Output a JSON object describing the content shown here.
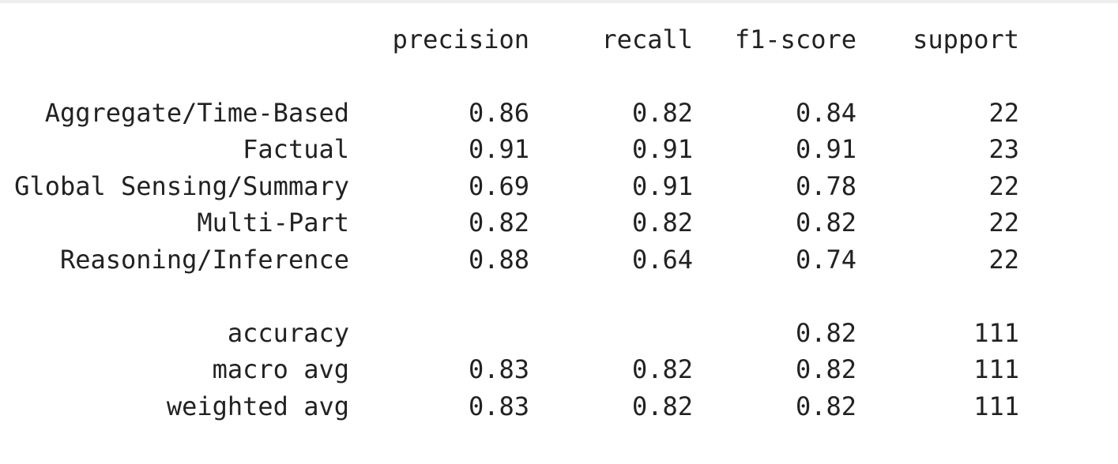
{
  "headers": {
    "precision": "precision",
    "recall": "recall",
    "f1": "f1-score",
    "support": "support"
  },
  "rows": [
    {
      "label": "Aggregate/Time-Based",
      "precision": "0.86",
      "recall": "0.82",
      "f1": "0.84",
      "support": "22"
    },
    {
      "label": "Factual",
      "precision": "0.91",
      "recall": "0.91",
      "f1": "0.91",
      "support": "23"
    },
    {
      "label": "Global Sensing/Summary",
      "precision": "0.69",
      "recall": "0.91",
      "f1": "0.78",
      "support": "22"
    },
    {
      "label": "Multi-Part",
      "precision": "0.82",
      "recall": "0.82",
      "f1": "0.82",
      "support": "22"
    },
    {
      "label": "Reasoning/Inference",
      "precision": "0.88",
      "recall": "0.64",
      "f1": "0.74",
      "support": "22"
    }
  ],
  "summary": [
    {
      "label": "accuracy",
      "precision": "",
      "recall": "",
      "f1": "0.82",
      "support": "111"
    },
    {
      "label": "macro avg",
      "precision": "0.83",
      "recall": "0.82",
      "f1": "0.82",
      "support": "111"
    },
    {
      "label": "weighted avg",
      "precision": "0.83",
      "recall": "0.82",
      "f1": "0.82",
      "support": "111"
    }
  ]
}
